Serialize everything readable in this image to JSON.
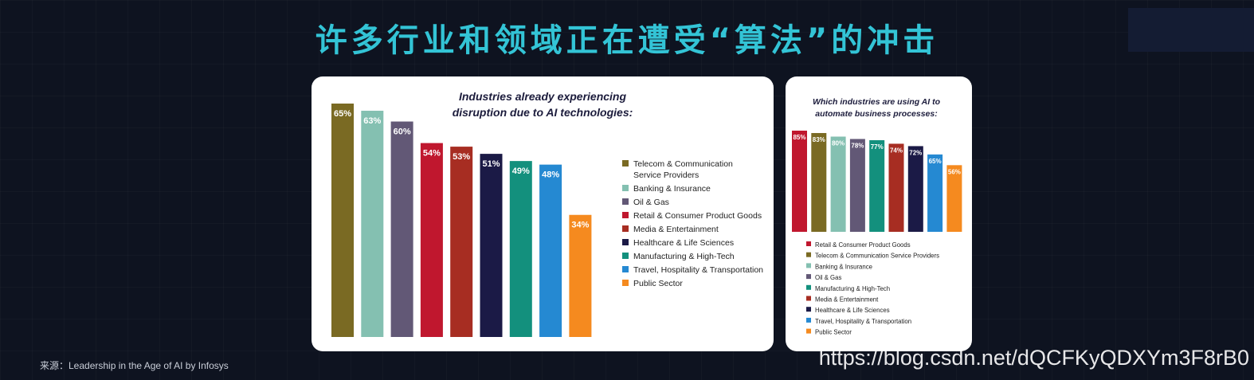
{
  "page_title": "许多行业和领域正在遭受“算法”的冲击",
  "source_note": "来源：Leadership in the Age of AI by Infosys",
  "watermark": "https://blog.csdn.net/dQCFKyQDXYm3F8rB0",
  "chart_data": [
    {
      "type": "bar",
      "title": "Industries already experiencing disruption due to AI technologies:",
      "title_lines": [
        "Industries already experiencing",
        "disruption due to AI technologies:"
      ],
      "categories": [
        "Telecom & Communication Service Providers",
        "Banking & Insurance",
        "Oil & Gas",
        "Retail & Consumer Product Goods",
        "Media & Entertainment",
        "Healthcare & Life Sciences",
        "Manufacturing & High-Tech",
        "Travel, Hospitality & Transportation",
        "Public Sector"
      ],
      "legend_lines": [
        [
          "Telecom & Communication",
          "Service Providers"
        ],
        [
          "Banking & Insurance"
        ],
        [
          "Oil & Gas"
        ],
        [
          "Retail & Consumer Product Goods"
        ],
        [
          "Media & Entertainment"
        ],
        [
          "Healthcare & Life Sciences"
        ],
        [
          "Manufacturing & High-Tech"
        ],
        [
          "Travel, Hospitality & Transportation"
        ],
        [
          "Public Sector"
        ]
      ],
      "values": [
        65,
        63,
        60,
        54,
        53,
        51,
        49,
        48,
        34
      ],
      "labels": [
        "65%",
        "63%",
        "60%",
        "54%",
        "53%",
        "51%",
        "49%",
        "48%",
        "34%"
      ],
      "colors": [
        "#7a6a23",
        "#84c0b1",
        "#625876",
        "#c0172e",
        "#a72d22",
        "#1b1a46",
        "#13907d",
        "#2589d2",
        "#f58a1f"
      ],
      "unit": "%",
      "ylim": [
        0,
        70
      ],
      "legend_position": "right"
    },
    {
      "type": "bar",
      "title": "Which industries are using AI to automate business processes:",
      "title_lines": [
        "Which industries are using AI to",
        "automate business processes:"
      ],
      "categories": [
        "Retail & Consumer Product Goods",
        "Telecom & Communication Service Providers",
        "Banking & Insurance",
        "Oil & Gas",
        "Manufacturing & High-Tech",
        "Media & Entertainment",
        "Healthcare & Life Sciences",
        "Travel, Hospitality & Transportation",
        "Public Sector"
      ],
      "values": [
        85,
        83,
        80,
        78,
        77,
        74,
        72,
        65,
        56
      ],
      "labels": [
        "85%",
        "83%",
        "80%",
        "78%",
        "77%",
        "74%",
        "72%",
        "65%",
        "56%"
      ],
      "colors": [
        "#c0172e",
        "#7a6a23",
        "#84c0b1",
        "#625876",
        "#13907d",
        "#a72d22",
        "#1b1a46",
        "#2589d2",
        "#f58a1f"
      ],
      "unit": "%",
      "ylim": [
        0,
        100
      ],
      "legend_position": "bottom"
    }
  ]
}
